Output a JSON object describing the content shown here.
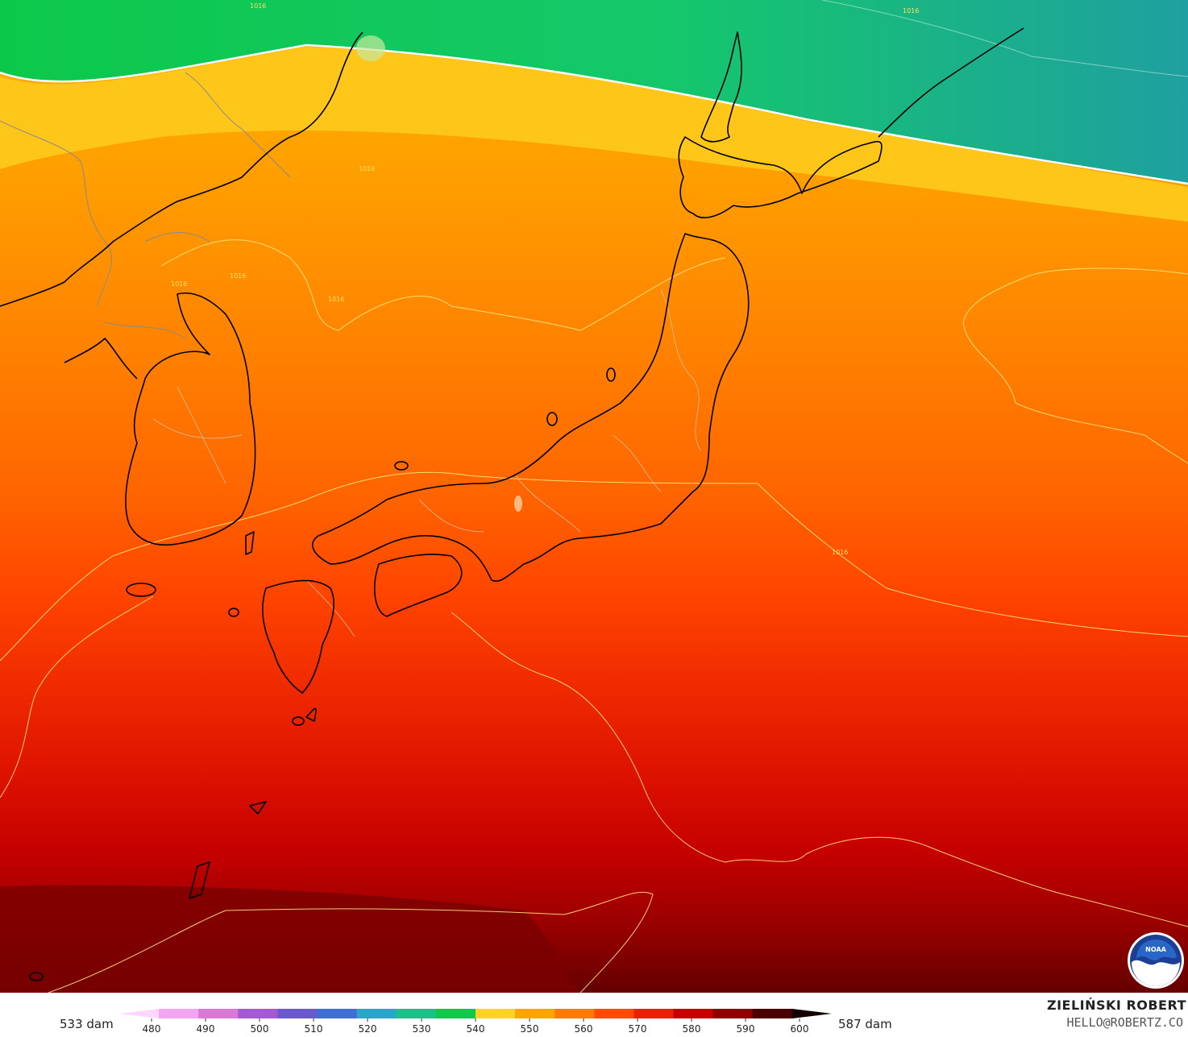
{
  "map": {
    "isobar_labels": [
      "1016",
      "1016",
      "1016",
      "1016",
      "1016",
      "1016",
      "1016"
    ]
  },
  "legend": {
    "min_label": "533 dam",
    "max_label": "587 dam",
    "ticks": [
      "480",
      "490",
      "500",
      "510",
      "520",
      "530",
      "540",
      "550",
      "560",
      "570",
      "580",
      "590",
      "600"
    ],
    "colors": [
      "#ffd6ff",
      "#f2a6f2",
      "#d67ad6",
      "#a45ad2",
      "#6a5acd",
      "#3f6fd6",
      "#2aa6c8",
      "#1fbf8a",
      "#11c84a",
      "#ffd22a",
      "#ffa500",
      "#ff7a00",
      "#ff4a00",
      "#e82200",
      "#c40000",
      "#8e0000",
      "#4a0000",
      "#140000"
    ]
  },
  "credits": {
    "author": "ZIELIŃSKI ROBERT",
    "email": "HELLO@ROBERTZ.CO"
  },
  "logo": {
    "icon": "noaa-logo-icon",
    "text": "NOAA"
  }
}
